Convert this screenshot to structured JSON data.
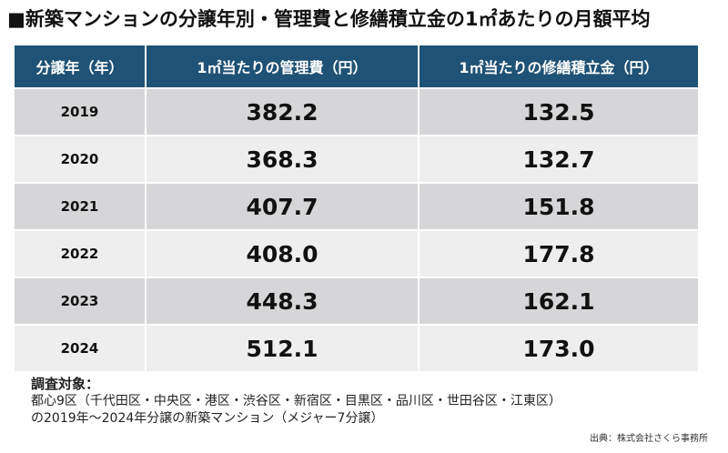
{
  "title": "■新築マンションの分譲年別・管理費と修繕積立金の1㎡あたりの月額平均",
  "table": {
    "headers": [
      "分譲年（年）",
      "1㎡当たりの管理費（円）",
      "1㎡当たりの修繕積立金（円）"
    ],
    "rows": [
      {
        "year": "2019",
        "management_fee": "382.2",
        "repair_reserve": "132.5"
      },
      {
        "year": "2020",
        "management_fee": "368.3",
        "repair_reserve": "132.7"
      },
      {
        "year": "2021",
        "management_fee": "407.7",
        "repair_reserve": "151.8"
      },
      {
        "year": "2022",
        "management_fee": "408.0",
        "repair_reserve": "177.8"
      },
      {
        "year": "2023",
        "management_fee": "448.3",
        "repair_reserve": "162.1"
      },
      {
        "year": "2024",
        "management_fee": "512.1",
        "repair_reserve": "173.0"
      }
    ]
  },
  "notes": {
    "label": "調査対象：",
    "line1": "都心9区（千代田区・中央区・港区・渋谷区・新宿区・目黒区・品川区・世田谷区・江東区）",
    "line2": "の2019年～2024年分譲の新築マンション（メジャー7分譲）"
  },
  "source": "出典：株式会社さくら事務所",
  "colors": {
    "header_bg": "#1f5275",
    "row_dark": "#d6d6d8",
    "row_light": "#eeeeef"
  }
}
